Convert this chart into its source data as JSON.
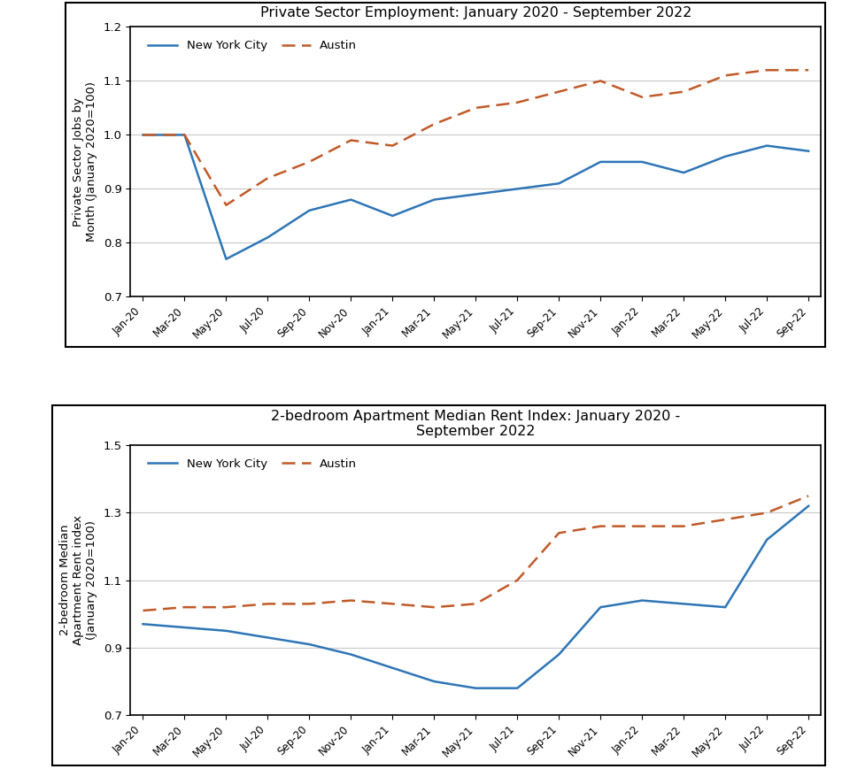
{
  "top_chart": {
    "title": "Private Sector Employment: January 2020 - September 2022",
    "ylabel": "Private Sector Jobs by\nMonth (January 2020=100)",
    "ylim": [
      0.7,
      1.2
    ],
    "yticks": [
      0.7,
      0.8,
      0.9,
      1.0,
      1.1,
      1.2
    ],
    "x_labels": [
      "Jan-20",
      "Mar-20",
      "May-20",
      "Jul-20",
      "Sep-20",
      "Nov-20",
      "Jan-21",
      "Mar-21",
      "May-21",
      "Jul-21",
      "Sep-21",
      "Nov-21",
      "Jan-22",
      "Mar-22",
      "May-22",
      "Jul-22",
      "Sep-22"
    ],
    "nyc": [
      1.0,
      1.0,
      0.77,
      0.81,
      0.86,
      0.88,
      0.85,
      0.88,
      0.89,
      0.9,
      0.91,
      0.95,
      0.95,
      0.93,
      0.96,
      0.98,
      0.97
    ],
    "austin": [
      1.0,
      1.0,
      0.87,
      0.92,
      0.95,
      0.99,
      0.98,
      1.02,
      1.05,
      1.06,
      1.08,
      1.1,
      1.07,
      1.08,
      1.11,
      1.12,
      1.12
    ],
    "nyc_color": "#2E75B6",
    "austin_color": "#C05A28",
    "nyc_label": "New York City",
    "austin_label": "Austin"
  },
  "bottom_chart": {
    "title": "2-bedroom Apartment Median Rent Index: January 2020 -\nSeptember 2022",
    "ylabel": "2-bedroom Median\nApartment Rent index\n(January 2020=100)",
    "ylim": [
      0.7,
      1.5
    ],
    "yticks": [
      0.7,
      0.9,
      1.1,
      1.3,
      1.5
    ],
    "x_labels": [
      "Jan-20",
      "Mar-20",
      "May-20",
      "Jul-20",
      "Sep-20",
      "Nov-20",
      "Jan-21",
      "Mar-21",
      "May-21",
      "Jul-21",
      "Sep-21",
      "Nov-21",
      "Jan-22",
      "Mar-22",
      "May-22",
      "Jul-22",
      "Sep-22"
    ],
    "nyc": [
      0.97,
      0.96,
      0.95,
      0.93,
      0.91,
      0.88,
      0.84,
      0.8,
      0.78,
      0.78,
      0.88,
      1.02,
      1.04,
      1.03,
      1.02,
      1.22,
      1.32
    ],
    "austin": [
      1.01,
      1.02,
      1.02,
      1.03,
      1.03,
      1.04,
      1.03,
      1.02,
      1.03,
      1.1,
      1.24,
      1.26,
      1.26,
      1.26,
      1.28,
      1.3,
      1.35
    ],
    "nyc_color": "#2E75B6",
    "austin_color": "#C05A28",
    "nyc_label": "New York City",
    "austin_label": "Austin"
  },
  "background_color": "#FFFFFF",
  "grid_color": "#C8C8C8",
  "border_color": "#000000",
  "panel_border_color": "#000000"
}
